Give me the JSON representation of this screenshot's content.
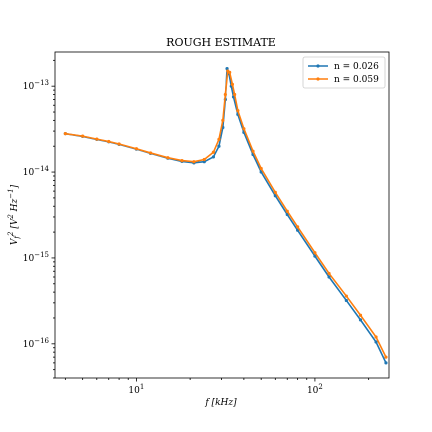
{
  "chart_data": {
    "type": "line",
    "title": "ROUGH ESTIMATE",
    "xlabel": "f [kHz]",
    "ylabel": "V_f^2 [V^2 Hz^-1]",
    "x_scale": "log",
    "y_scale": "log",
    "xlim": [
      3.5,
      260
    ],
    "ylim": [
      4e-17,
      2.5e-13
    ],
    "x_ticks": [
      {
        "value": 10,
        "label": "10^1"
      },
      {
        "value": 100,
        "label": "10^2"
      }
    ],
    "y_ticks": [
      {
        "value": 1e-16,
        "label": "10^-16"
      },
      {
        "value": 1e-15,
        "label": "10^-15"
      },
      {
        "value": 1e-14,
        "label": "10^-14"
      },
      {
        "value": 1e-13,
        "label": "10^-13"
      }
    ],
    "grid": false,
    "legend_position": "top-right",
    "series": [
      {
        "name": "n = 0.026",
        "color": "#1f77b4",
        "points": [
          [
            4.0,
            2.8e-14
          ],
          [
            5.0,
            2.6e-14
          ],
          [
            6.0,
            2.4e-14
          ],
          [
            7.0,
            2.25e-14
          ],
          [
            8.0,
            2.1e-14
          ],
          [
            10.0,
            1.85e-14
          ],
          [
            12.0,
            1.65e-14
          ],
          [
            15.0,
            1.45e-14
          ],
          [
            18.0,
            1.33e-14
          ],
          [
            21.0,
            1.28e-14
          ],
          [
            24.0,
            1.32e-14
          ],
          [
            27.0,
            1.5e-14
          ],
          [
            29.0,
            2e-14
          ],
          [
            30.5,
            3.3e-14
          ],
          [
            31.5,
            7e-14
          ],
          [
            32.2,
            1.6e-13
          ],
          [
            33.0,
            1.4e-13
          ],
          [
            34.0,
            1e-13
          ],
          [
            35.0,
            7.5e-14
          ],
          [
            37.0,
            4.7e-14
          ],
          [
            40.0,
            2.9e-14
          ],
          [
            45.0,
            1.6e-14
          ],
          [
            50.0,
            1e-14
          ],
          [
            60.0,
            5.3e-15
          ],
          [
            70.0,
            3.2e-15
          ],
          [
            80.0,
            2.1e-15
          ],
          [
            100.0,
            1.05e-15
          ],
          [
            120.0,
            6e-16
          ],
          [
            150.0,
            3.2e-16
          ],
          [
            180.0,
            1.9e-16
          ],
          [
            220.0,
            1.05e-16
          ],
          [
            250.0,
            6e-17
          ]
        ]
      },
      {
        "name": "n = 0.059",
        "color": "#ff7f0e",
        "points": [
          [
            4.0,
            2.8e-14
          ],
          [
            5.0,
            2.62e-14
          ],
          [
            6.0,
            2.42e-14
          ],
          [
            7.0,
            2.27e-14
          ],
          [
            8.0,
            2.12e-14
          ],
          [
            10.0,
            1.87e-14
          ],
          [
            12.0,
            1.67e-14
          ],
          [
            15.0,
            1.47e-14
          ],
          [
            18.0,
            1.36e-14
          ],
          [
            21.0,
            1.32e-14
          ],
          [
            24.0,
            1.4e-14
          ],
          [
            27.0,
            1.7e-14
          ],
          [
            29.0,
            2.4e-14
          ],
          [
            30.5,
            4e-14
          ],
          [
            31.5,
            8e-14
          ],
          [
            32.5,
            1.5e-13
          ],
          [
            33.3,
            1.45e-13
          ],
          [
            34.5,
            1.05e-13
          ],
          [
            35.5,
            8e-14
          ],
          [
            37.0,
            5.2e-14
          ],
          [
            40.0,
            3.2e-14
          ],
          [
            45.0,
            1.75e-14
          ],
          [
            50.0,
            1.1e-14
          ],
          [
            60.0,
            5.8e-15
          ],
          [
            70.0,
            3.5e-15
          ],
          [
            80.0,
            2.3e-15
          ],
          [
            100.0,
            1.15e-15
          ],
          [
            120.0,
            6.6e-16
          ],
          [
            150.0,
            3.6e-16
          ],
          [
            180.0,
            2.15e-16
          ],
          [
            220.0,
            1.2e-16
          ],
          [
            250.0,
            7e-17
          ]
        ]
      }
    ]
  }
}
